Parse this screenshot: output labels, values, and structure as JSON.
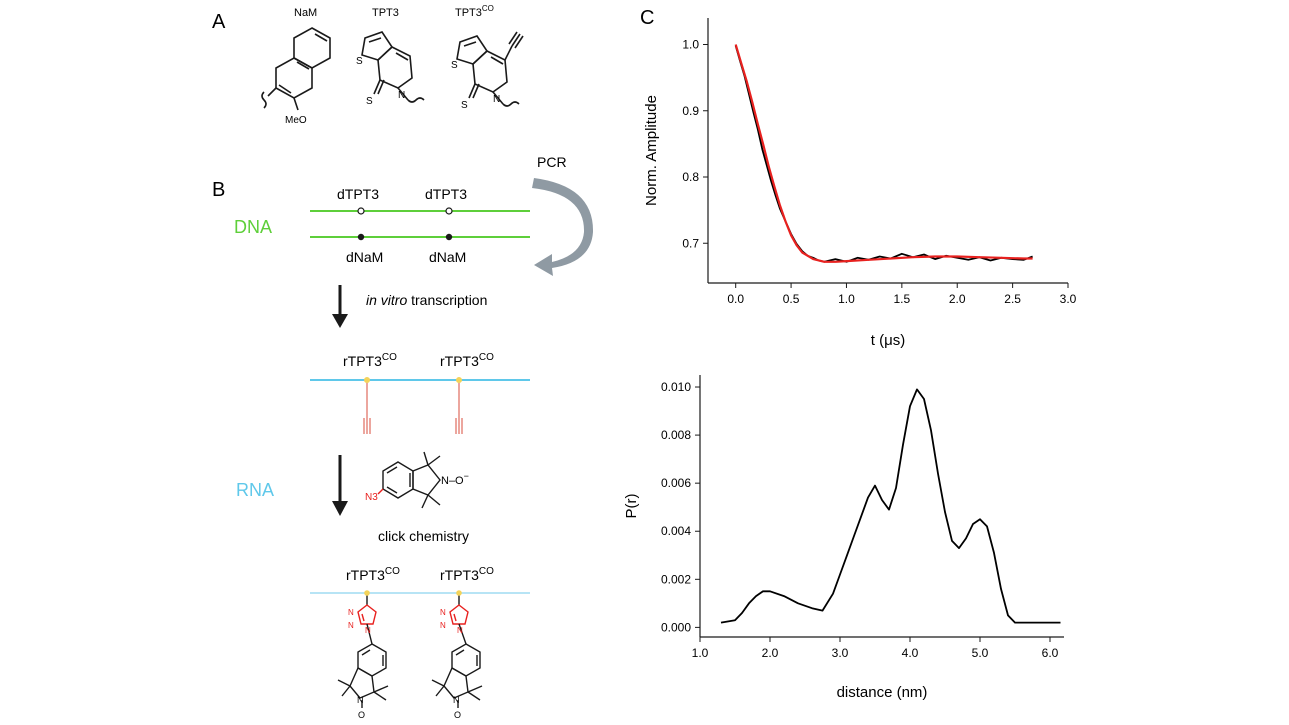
{
  "panels": {
    "A": {
      "letter": "A",
      "molecules": {
        "nam": {
          "name": "NaM",
          "label": "MeO"
        },
        "tpt3": {
          "name": "TPT3",
          "s1": "S",
          "s2": "S",
          "n": "N"
        },
        "tpt3co": {
          "name": "TPT3",
          "sup": "CO",
          "s1": "S",
          "s2": "S",
          "n": "N"
        }
      }
    },
    "B": {
      "letter": "B",
      "dna_label": "DNA",
      "rna_label": "RNA",
      "pcr_label": "PCR",
      "top_strand_labels": [
        "dTPT3",
        "dTPT3"
      ],
      "bottom_strand_labels": [
        "dNaM",
        "dNaM"
      ],
      "transcription_italic": "in vitro",
      "transcription_rest": " transcription",
      "rna_mod_base": "rTPT3",
      "rna_mod_sup": "CO",
      "click_label": "click chemistry",
      "spin_label": {
        "n3": "N3",
        "no": "N–O",
        "minus": "−"
      },
      "triazole_n": [
        "N",
        "N",
        "N"
      ],
      "nitroxide_n": "N",
      "nitroxide_o": "O"
    }
  },
  "chart_data": [
    {
      "panel": "C",
      "letter": "C",
      "type": "line",
      "xlabel": "t (μs)",
      "ylabel": "Norm. Amplitude",
      "xlim": [
        -0.25,
        3.0
      ],
      "ylim": [
        0.64,
        1.04
      ],
      "xticks": [
        0.0,
        0.5,
        1.0,
        1.5,
        2.0,
        2.5,
        3.0
      ],
      "xtick_labels": [
        "0.0",
        "0.5",
        "1.0",
        "1.5",
        "2.0",
        "2.5",
        "3.0"
      ],
      "yticks": [
        0.7,
        0.8,
        0.9,
        1.0
      ],
      "ytick_labels": [
        "0.7",
        "0.8",
        "0.9",
        "1.0"
      ],
      "grid": false,
      "series": [
        {
          "role": "data",
          "color": "#000000",
          "x": [
            0.0,
            0.04,
            0.08,
            0.12,
            0.16,
            0.2,
            0.24,
            0.28,
            0.32,
            0.36,
            0.4,
            0.45,
            0.5,
            0.55,
            0.6,
            0.65,
            0.7,
            0.75,
            0.8,
            0.9,
            1.0,
            1.1,
            1.2,
            1.3,
            1.4,
            1.5,
            1.6,
            1.7,
            1.8,
            1.9,
            2.0,
            2.1,
            2.2,
            2.3,
            2.4,
            2.5,
            2.6,
            2.68
          ],
          "y": [
            0.998,
            0.975,
            0.952,
            0.925,
            0.898,
            0.872,
            0.842,
            0.818,
            0.794,
            0.772,
            0.752,
            0.733,
            0.714,
            0.699,
            0.688,
            0.681,
            0.678,
            0.674,
            0.672,
            0.676,
            0.672,
            0.678,
            0.675,
            0.68,
            0.677,
            0.684,
            0.679,
            0.683,
            0.676,
            0.681,
            0.678,
            0.675,
            0.679,
            0.674,
            0.678,
            0.676,
            0.675,
            0.68
          ]
        },
        {
          "role": "fit",
          "color": "#e8211f",
          "x": [
            0.0,
            0.05,
            0.1,
            0.15,
            0.2,
            0.25,
            0.3,
            0.35,
            0.4,
            0.45,
            0.5,
            0.55,
            0.6,
            0.7,
            0.8,
            0.9,
            1.0,
            1.2,
            1.4,
            1.6,
            1.8,
            2.0,
            2.2,
            2.4,
            2.6,
            2.68
          ],
          "y": [
            1.0,
            0.972,
            0.944,
            0.913,
            0.88,
            0.848,
            0.815,
            0.785,
            0.757,
            0.733,
            0.712,
            0.697,
            0.686,
            0.676,
            0.672,
            0.672,
            0.673,
            0.675,
            0.677,
            0.679,
            0.68,
            0.68,
            0.679,
            0.678,
            0.677,
            0.677
          ]
        }
      ]
    },
    {
      "panel": "C-lower",
      "type": "line",
      "xlabel": "distance (nm)",
      "ylabel": "P(r)",
      "xlim": [
        1.0,
        6.2
      ],
      "ylim": [
        -0.0004,
        0.0105
      ],
      "xticks": [
        1.0,
        2.0,
        3.0,
        4.0,
        5.0,
        6.0
      ],
      "xtick_labels": [
        "1.0",
        "2.0",
        "3.0",
        "4.0",
        "5.0",
        "6.0"
      ],
      "yticks": [
        0.0,
        0.002,
        0.004,
        0.006,
        0.008,
        0.01
      ],
      "ytick_labels": [
        "0.000",
        "0.002",
        "0.004",
        "0.006",
        "0.008",
        "0.010"
      ],
      "grid": false,
      "series": [
        {
          "color": "#000000",
          "x": [
            1.3,
            1.5,
            1.6,
            1.7,
            1.8,
            1.9,
            2.0,
            2.2,
            2.4,
            2.6,
            2.75,
            2.9,
            3.0,
            3.1,
            3.2,
            3.3,
            3.4,
            3.5,
            3.6,
            3.7,
            3.8,
            3.9,
            4.0,
            4.1,
            4.2,
            4.3,
            4.4,
            4.5,
            4.6,
            4.7,
            4.8,
            4.9,
            5.0,
            5.1,
            5.2,
            5.3,
            5.4,
            5.5,
            5.6,
            5.8,
            6.0,
            6.15
          ],
          "y": [
            0.0002,
            0.0003,
            0.0006,
            0.001,
            0.0013,
            0.0015,
            0.0015,
            0.0013,
            0.001,
            0.0008,
            0.0007,
            0.0014,
            0.0022,
            0.003,
            0.0038,
            0.0046,
            0.0054,
            0.0059,
            0.0053,
            0.0049,
            0.0058,
            0.0076,
            0.0092,
            0.0099,
            0.0095,
            0.0082,
            0.0064,
            0.0048,
            0.0036,
            0.0033,
            0.0037,
            0.0043,
            0.0045,
            0.0042,
            0.0031,
            0.0016,
            0.0005,
            0.0002,
            0.0002,
            0.0002,
            0.0002,
            0.0002
          ]
        }
      ]
    }
  ]
}
